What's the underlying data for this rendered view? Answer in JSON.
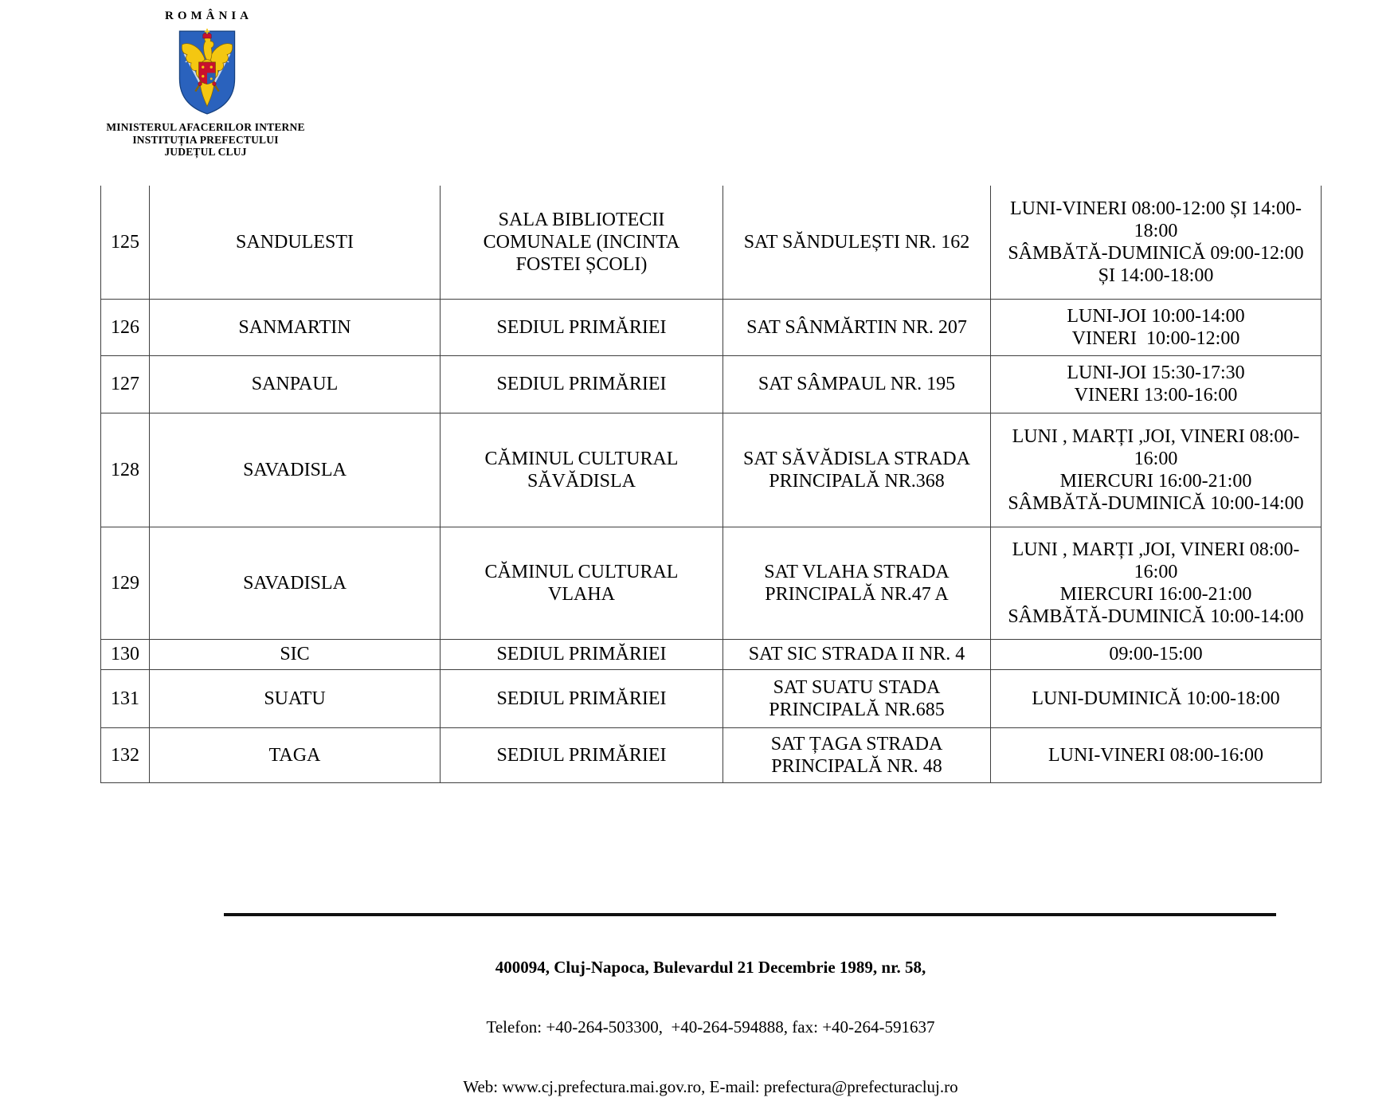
{
  "header": {
    "country_label": "ROMÂNIA",
    "ministry_line1": "MINISTERUL AFACERILOR INTERNE",
    "ministry_line2": "INSTITUȚIA PREFECTULUI",
    "ministry_line3": "JUDEȚUL CLUJ",
    "coat_of_arms_icon": "romania-coat-of-arms"
  },
  "colors": {
    "shield_blue": "#2a62bd",
    "eagle_gold": "#f4c711",
    "accent_red": "#c8102e",
    "quarter_blue": "#2a5fb0",
    "steel_gray": "#cfd8e4"
  },
  "table": {
    "rows": [
      {
        "nr": "125",
        "locality": "SANDULESTI",
        "location": [
          "SALA BIBLIOTECII",
          "COMUNALE (INCINTA",
          "FOSTEI ȘCOLI)"
        ],
        "address": [
          "SAT SĂNDULEȘTI NR. 162"
        ],
        "schedule": [
          "LUNI-VINERI 08:00-12:00 ȘI 14:00-",
          "18:00",
          "SÂMBĂTĂ-DUMINICĂ 09:00-12:00",
          "ȘI 14:00-18:00"
        ]
      },
      {
        "nr": "126",
        "locality": "SANMARTIN",
        "location": [
          "SEDIUL PRIMĂRIEI"
        ],
        "address": [
          "SAT SÂNMĂRTIN NR. 207"
        ],
        "schedule": [
          "LUNI-JOI 10:00-14:00",
          "VINERI  10:00-12:00"
        ]
      },
      {
        "nr": "127",
        "locality": "SANPAUL",
        "location": [
          "SEDIUL PRIMĂRIEI"
        ],
        "address": [
          "SAT SÂMPAUL NR. 195"
        ],
        "schedule": [
          "LUNI-JOI 15:30-17:30",
          "VINERI 13:00-16:00"
        ]
      },
      {
        "nr": "128",
        "locality": "SAVADISLA",
        "location": [
          "CĂMINUL CULTURAL",
          "SĂVĂDISLA"
        ],
        "address": [
          "SAT SĂVĂDISLA STRADA",
          "PRINCIPALĂ NR.368"
        ],
        "schedule": [
          "LUNI , MARȚI ,JOI, VINERI 08:00-",
          "16:00",
          "MIERCURI 16:00-21:00",
          "SÂMBĂTĂ-DUMINICĂ 10:00-14:00"
        ]
      },
      {
        "nr": "129",
        "locality": "SAVADISLA",
        "location": [
          "CĂMINUL CULTURAL",
          "VLAHA"
        ],
        "address": [
          "SAT VLAHA STRADA",
          "PRINCIPALĂ NR.47 A"
        ],
        "schedule": [
          "LUNI , MARȚI ,JOI, VINERI 08:00-",
          "16:00",
          "MIERCURI 16:00-21:00",
          "SÂMBĂTĂ-DUMINICĂ 10:00-14:00"
        ]
      },
      {
        "nr": "130",
        "locality": "SIC",
        "location": [
          "SEDIUL PRIMĂRIEI"
        ],
        "address": [
          "SAT SIC STRADA II NR. 4"
        ],
        "schedule": [
          "09:00-15:00"
        ]
      },
      {
        "nr": "131",
        "locality": "SUATU",
        "location": [
          "SEDIUL PRIMĂRIEI"
        ],
        "address": [
          "SAT SUATU STADA",
          "PRINCIPALĂ NR.685"
        ],
        "schedule": [
          "LUNI-DUMINICĂ 10:00-18:00"
        ]
      },
      {
        "nr": "132",
        "locality": "TAGA",
        "location": [
          "SEDIUL PRIMĂRIEI"
        ],
        "address": [
          "SAT ȚAGA STRADA",
          "PRINCIPALĂ NR. 48"
        ],
        "schedule": [
          "LUNI-VINERI 08:00-16:00"
        ]
      }
    ]
  },
  "footer": {
    "address": "400094, Cluj-Napoca, Bulevardul 21 Decembrie 1989, nr. 58,",
    "phone": "Telefon: +40-264-503300,  +40-264-594888, fax: +40-264-591637",
    "web": "Web: www.cj.prefectura.mai.gov.ro, E-mail: prefectura@prefecturacluj.ro"
  }
}
